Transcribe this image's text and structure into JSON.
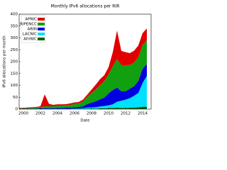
{
  "chart_data": {
    "type": "stacked_area",
    "title": "Monthly IPv6 allocations per RIR",
    "x_label": "Date",
    "y_label": "IPv6 allocations per month",
    "x": [
      1999.5,
      2000,
      2000.5,
      2001,
      2001.5,
      2002,
      2002.5,
      2003,
      2003.5,
      2004,
      2004.5,
      2005,
      2005.5,
      2006,
      2006.5,
      2007,
      2007.5,
      2008,
      2008.5,
      2009,
      2009.5,
      2010,
      2010.5,
      2011,
      2011.5,
      2012,
      2012.5,
      2013,
      2013.5,
      2014,
      2014.5
    ],
    "series": [
      {
        "name": "APNIC",
        "color": "#e00000",
        "values": [
          2,
          2,
          2,
          3,
          3,
          4,
          50,
          10,
          6,
          6,
          5,
          5,
          6,
          6,
          6,
          8,
          10,
          15,
          20,
          25,
          25,
          30,
          60,
          120,
          60,
          55,
          50,
          50,
          50,
          50,
          50
        ]
      },
      {
        "name": "RIPENCC",
        "color": "#10a010",
        "values": [
          2,
          2,
          3,
          3,
          4,
          5,
          8,
          8,
          8,
          10,
          10,
          10,
          12,
          14,
          15,
          20,
          30,
          40,
          50,
          60,
          70,
          80,
          100,
          120,
          110,
          110,
          100,
          100,
          100,
          100,
          100
        ]
      },
      {
        "name": "ARIN",
        "color": "#0000e0",
        "values": [
          1,
          1,
          2,
          2,
          2,
          3,
          3,
          3,
          3,
          3,
          4,
          4,
          4,
          5,
          6,
          8,
          15,
          20,
          25,
          30,
          35,
          50,
          60,
          60,
          40,
          35,
          40,
          40,
          50,
          60,
          50
        ]
      },
      {
        "name": "LACNIC",
        "color": "#00e0ff",
        "values": [
          0,
          0,
          0,
          0,
          0,
          0,
          1,
          1,
          1,
          1,
          1,
          1,
          1,
          2,
          2,
          3,
          4,
          5,
          6,
          8,
          10,
          12,
          15,
          25,
          30,
          35,
          40,
          50,
          60,
          100,
          130
        ]
      },
      {
        "name": "AfriNIC",
        "color": "#006400",
        "values": [
          0,
          0,
          0,
          0,
          0,
          0,
          0,
          0,
          0,
          0,
          0,
          1,
          1,
          1,
          1,
          1,
          2,
          2,
          2,
          3,
          3,
          4,
          5,
          6,
          5,
          5,
          6,
          6,
          8,
          10,
          10
        ]
      }
    ],
    "xlim": [
      1999.5,
      2015
    ],
    "xticks": [
      2000,
      2002,
      2004,
      2006,
      2008,
      2010,
      2012,
      2014
    ],
    "ylim": [
      0,
      400
    ],
    "yticks": [
      0,
      50,
      100,
      150,
      200,
      250,
      300,
      350,
      400
    ],
    "legend": "upper left"
  }
}
